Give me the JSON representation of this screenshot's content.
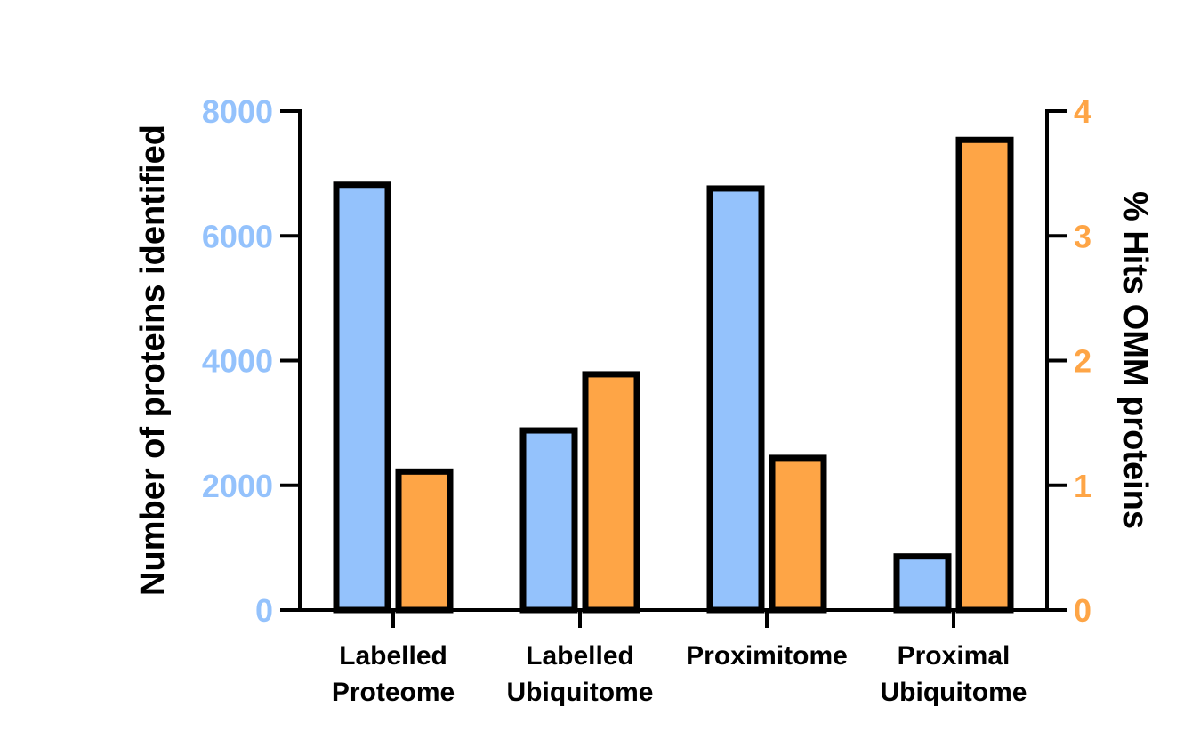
{
  "chart_data": {
    "type": "bar",
    "categories": [
      [
        "Labelled",
        "Proteome"
      ],
      [
        "Labelled",
        "Ubiquitome"
      ],
      [
        "Proximitome"
      ],
      [
        "Proximal",
        "Ubiquitome"
      ]
    ],
    "series": [
      {
        "axis": "left",
        "color": "#94c2fc",
        "values": [
          6820,
          2880,
          6760,
          860
        ]
      },
      {
        "axis": "right",
        "color": "#fea546",
        "values": [
          1.11,
          1.89,
          1.22,
          3.77
        ]
      }
    ],
    "ylabel": "Number of proteins identified",
    "ylabel_right": "% Hits OMM proteins",
    "ylim": [
      0,
      8000
    ],
    "ylim_right": [
      0,
      4
    ],
    "yticks": [
      "0",
      "2000",
      "4000",
      "6000",
      "8000"
    ],
    "yticks_right": [
      "0",
      "1",
      "2",
      "3",
      "4"
    ],
    "left_axis_color": "#94c2fc",
    "right_axis_color": "#fea546",
    "grid": false,
    "legend": "none"
  }
}
